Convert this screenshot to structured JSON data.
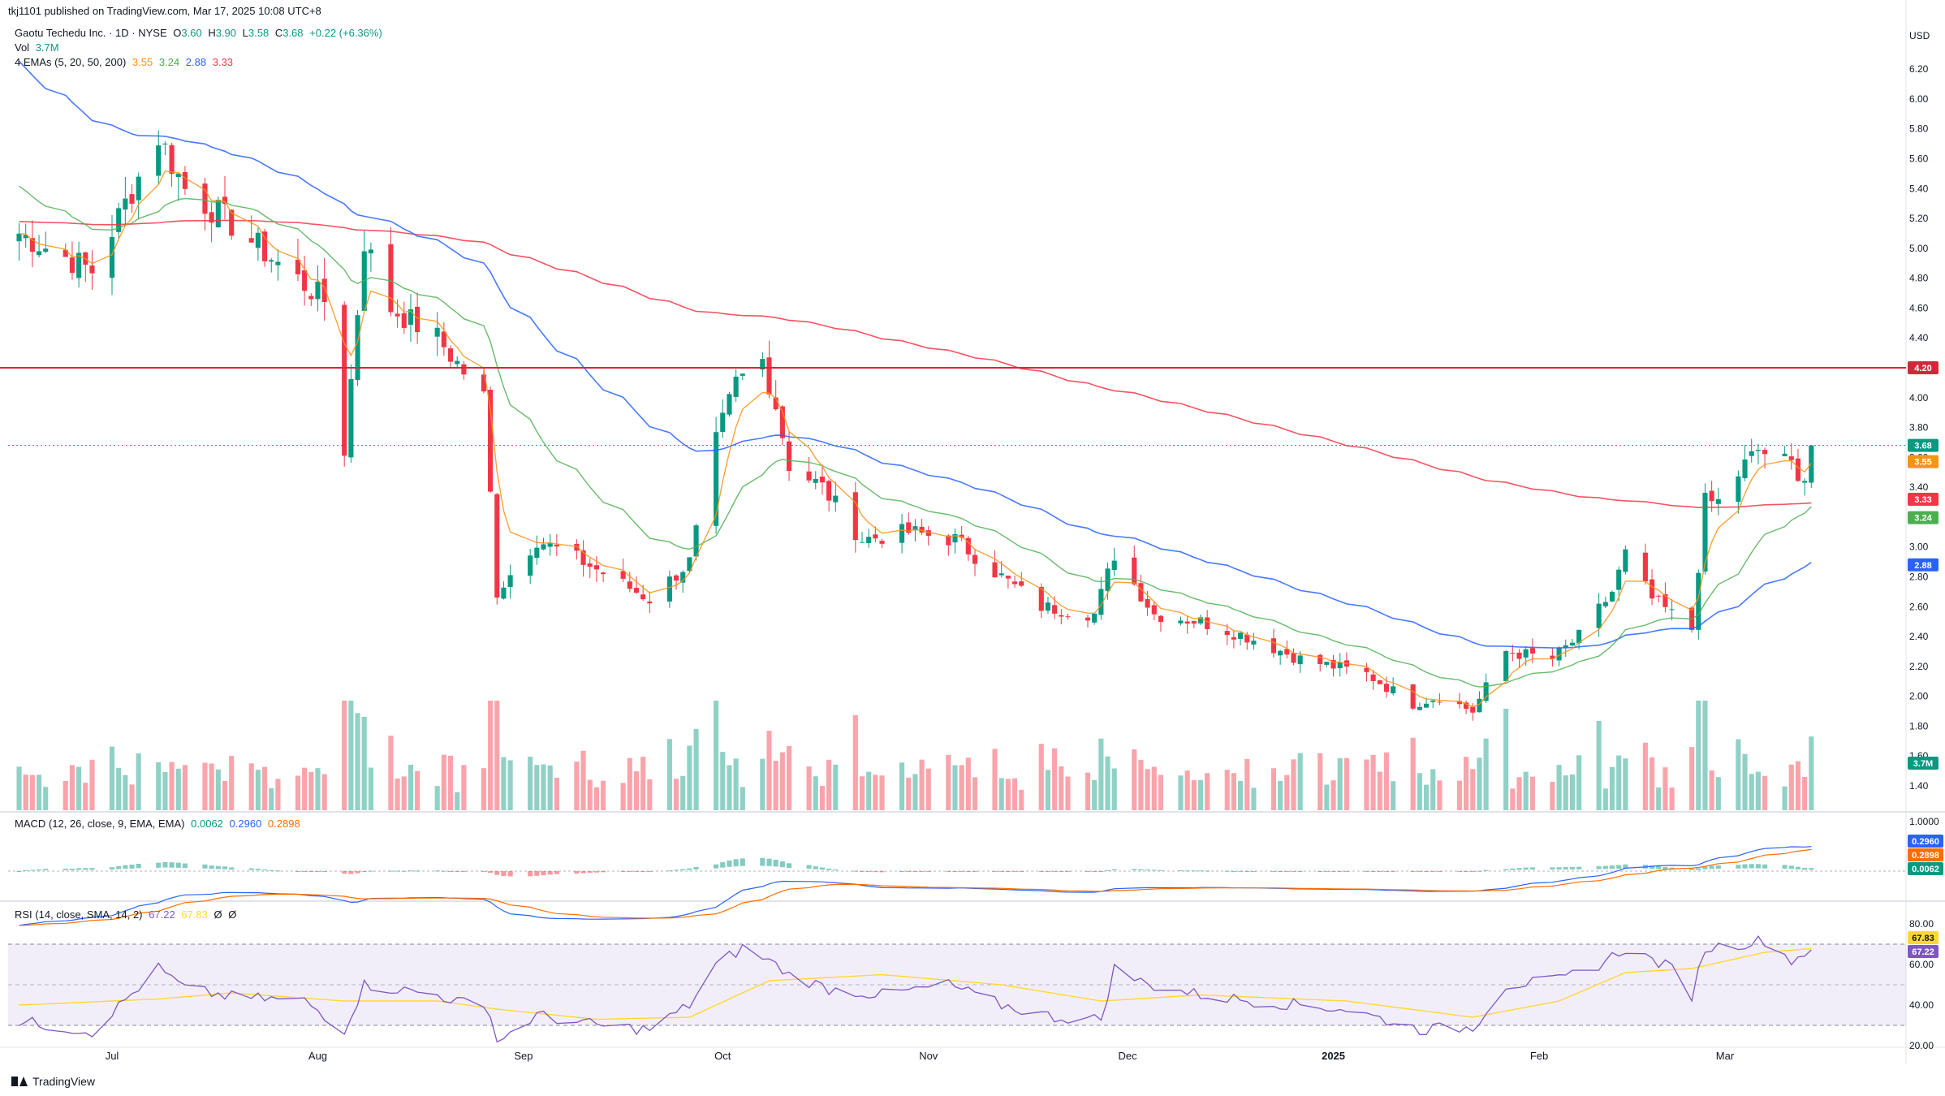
{
  "header": {
    "publisher": "tkj1101 published on TradingView.com, Mar 17, 2025 10:08 UTC+8"
  },
  "legend": {
    "symbol": "Gaotu Techedu Inc. · 1D · NYSE",
    "o_label": "O",
    "o_value": "3.60",
    "h_label": "H",
    "h_value": "3.90",
    "l_label": "L",
    "l_value": "3.58",
    "c_label": "C",
    "c_value": "3.68",
    "change": "+0.22 (+6.36%)",
    "vol_label": "Vol",
    "vol_value": "3.7M",
    "ema_label": "4 EMAs (5, 20, 50, 200)",
    "ema_values": [
      "3.55",
      "3.24",
      "2.88",
      "3.33"
    ],
    "macd_label": "MACD (12, 26, close, 9, EMA, EMA)",
    "macd_values": [
      "0.0062",
      "0.2960",
      "0.2898"
    ],
    "rsi_label": "RSI (14, close, SMA, 14, 2)",
    "rsi_values": [
      "67.22",
      "67.83",
      "Ø",
      "Ø"
    ]
  },
  "footer": {
    "logo_text": "TradingView"
  },
  "colors": {
    "up": "#089981",
    "down": "#f23645",
    "ema5": "#f7931a",
    "ema20": "#4caf50",
    "ema50": "#2962ff",
    "ema200": "#f23645",
    "resistance": "#d1283a",
    "macd": "#2962ff",
    "signal": "#ff6d00",
    "rsi": "#7e57c2",
    "rsi_ma": "#fdd835"
  },
  "chart_data": [
    {
      "type": "candlestick",
      "title": "Gaotu Techedu Inc. · 1D · NYSE",
      "currency": "USD",
      "y_ticks": [
        "1.40",
        "1.60",
        "1.80",
        "2.00",
        "2.20",
        "2.40",
        "2.60",
        "2.80",
        "3.00",
        "3.20",
        "3.40",
        "3.60",
        "3.80",
        "4.00",
        "4.20",
        "4.40",
        "4.60",
        "4.80",
        "5.00",
        "5.20",
        "5.40",
        "5.60",
        "5.80",
        "6.00",
        "6.20"
      ],
      "ylim": [
        1.28,
        6.52
      ],
      "x_labels": [
        "Jul",
        "Aug",
        "Sep",
        "Oct",
        "Nov",
        "Dec",
        "2025",
        "Feb",
        "Mar"
      ],
      "x_label_dates": [
        "2024-07-01",
        "2024-08-01",
        "2024-09-01",
        "2024-10-01",
        "2024-11-01",
        "2024-12-01",
        "2025-01-01",
        "2025-02-01",
        "2025-03-01"
      ],
      "date_range": [
        "2024-06-17",
        "2025-03-14"
      ],
      "horizontal_line": {
        "value": 4.2,
        "label": "4.20"
      },
      "last_price": {
        "value": 3.68,
        "label": "3.68"
      },
      "ema_tags": [
        {
          "name": "EMA 5",
          "value": 3.55,
          "label": "3.55"
        },
        {
          "name": "EMA 200",
          "value": 3.33,
          "label": "3.33"
        },
        {
          "name": "EMA 20",
          "value": 3.24,
          "label": "3.24"
        },
        {
          "name": "EMA 50",
          "value": 2.88,
          "label": "2.88"
        }
      ],
      "vol_tag": "3.7M",
      "key_closes": [
        [
          "2024-06-17",
          5.1
        ],
        [
          "2024-06-28",
          4.85
        ],
        [
          "2024-07-08",
          5.75
        ],
        [
          "2024-07-12",
          5.4
        ],
        [
          "2024-07-18",
          5.2
        ],
        [
          "2024-07-26",
          4.9
        ],
        [
          "2024-08-02",
          4.65
        ],
        [
          "2024-08-05",
          3.65
        ],
        [
          "2024-08-08",
          5.05
        ],
        [
          "2024-08-12",
          4.6
        ],
        [
          "2024-08-19",
          4.4
        ],
        [
          "2024-08-26",
          4.0
        ],
        [
          "2024-08-28",
          2.7
        ],
        [
          "2024-09-03",
          3.05
        ],
        [
          "2024-09-10",
          2.9
        ],
        [
          "2024-09-16",
          2.75
        ],
        [
          "2024-09-20",
          2.65
        ],
        [
          "2024-09-26",
          2.9
        ],
        [
          "2024-09-30",
          3.7
        ],
        [
          "2024-10-03",
          4.1
        ],
        [
          "2024-10-07",
          4.25
        ],
        [
          "2024-10-09",
          3.95
        ],
        [
          "2024-10-11",
          3.55
        ],
        [
          "2024-10-16",
          3.4
        ],
        [
          "2024-10-22",
          3.05
        ],
        [
          "2024-10-29",
          3.1
        ],
        [
          "2024-11-05",
          3.05
        ],
        [
          "2024-11-12",
          2.8
        ],
        [
          "2024-11-18",
          2.6
        ],
        [
          "2024-11-26",
          2.55
        ],
        [
          "2024-11-29",
          2.95
        ],
        [
          "2024-12-05",
          2.55
        ],
        [
          "2024-12-12",
          2.5
        ],
        [
          "2024-12-19",
          2.4
        ],
        [
          "2024-12-27",
          2.25
        ],
        [
          "2025-01-06",
          2.15
        ],
        [
          "2025-01-13",
          1.95
        ],
        [
          "2025-01-17",
          2.0
        ],
        [
          "2025-01-22",
          1.9
        ],
        [
          "2025-01-27",
          2.3
        ],
        [
          "2025-02-03",
          2.25
        ],
        [
          "2025-02-07",
          2.4
        ],
        [
          "2025-02-12",
          2.7
        ],
        [
          "2025-02-14",
          2.95
        ],
        [
          "2025-02-18",
          2.65
        ],
        [
          "2025-02-24",
          2.45
        ],
        [
          "2025-02-26",
          3.3
        ],
        [
          "2025-02-28",
          3.3
        ],
        [
          "2025-03-04",
          3.55
        ],
        [
          "2025-03-06",
          3.65
        ],
        [
          "2025-03-11",
          3.55
        ],
        [
          "2025-03-13",
          3.46
        ],
        [
          "2025-03-14",
          3.68
        ]
      ],
      "volume_ticks": [
        "Vol"
      ]
    },
    {
      "type": "line",
      "title": "MACD (12, 26, close, 9, EMA, EMA)",
      "y_ticks": [
        "1.0000"
      ],
      "tags": [
        {
          "name": "MACD",
          "label": "0.2960"
        },
        {
          "name": "Signal",
          "label": "0.2898"
        },
        {
          "name": "Histogram",
          "label": "0.0062"
        }
      ]
    },
    {
      "type": "line",
      "title": "RSI (14, close, SMA, 14, 2)",
      "y_ticks": [
        "80.00",
        "60.00",
        "40.00",
        "20.00"
      ],
      "ylim": [
        15,
        85
      ],
      "bands": [
        70,
        50,
        30
      ],
      "tags": [
        {
          "name": "RSI-based MA",
          "value": 67.83,
          "label": "67.83"
        },
        {
          "name": "RSI",
          "value": 67.22,
          "label": "67.22"
        }
      ],
      "rsi_points": [
        [
          "2024-06-17",
          32
        ],
        [
          "2024-06-28",
          27
        ],
        [
          "2024-07-08",
          58
        ],
        [
          "2024-07-12",
          48
        ],
        [
          "2024-07-19",
          44
        ],
        [
          "2024-07-30",
          42
        ],
        [
          "2024-08-05",
          28
        ],
        [
          "2024-08-08",
          50
        ],
        [
          "2024-08-19",
          45
        ],
        [
          "2024-08-27",
          37
        ],
        [
          "2024-08-28",
          22
        ],
        [
          "2024-09-03",
          35
        ],
        [
          "2024-09-12",
          30
        ],
        [
          "2024-09-20",
          28
        ],
        [
          "2024-09-26",
          40
        ],
        [
          "2024-09-30",
          60
        ],
        [
          "2024-10-04",
          68
        ],
        [
          "2024-10-08",
          62
        ],
        [
          "2024-10-11",
          55
        ],
        [
          "2024-10-17",
          48
        ],
        [
          "2024-10-25",
          45
        ],
        [
          "2024-11-04",
          50
        ],
        [
          "2024-11-12",
          40
        ],
        [
          "2024-11-20",
          34
        ],
        [
          "2024-11-27",
          33
        ],
        [
          "2024-11-29",
          58
        ],
        [
          "2024-12-04",
          50
        ],
        [
          "2024-12-12",
          45
        ],
        [
          "2024-12-20",
          42
        ],
        [
          "2025-01-03",
          38
        ],
        [
          "2025-01-14",
          28
        ],
        [
          "2025-01-22",
          29
        ],
        [
          "2025-01-27",
          50
        ],
        [
          "2025-02-04",
          52
        ],
        [
          "2025-02-10",
          60
        ],
        [
          "2025-02-14",
          68
        ],
        [
          "2025-02-21",
          58
        ],
        [
          "2025-02-24",
          45
        ],
        [
          "2025-02-26",
          68
        ],
        [
          "2025-03-03",
          70
        ],
        [
          "2025-03-07",
          72
        ],
        [
          "2025-03-11",
          62
        ],
        [
          "2025-03-14",
          67.22
        ]
      ],
      "rsi_ma_points": [
        [
          "2024-06-17",
          40
        ],
        [
          "2024-07-08",
          43
        ],
        [
          "2024-07-19",
          46
        ],
        [
          "2024-08-05",
          42
        ],
        [
          "2024-08-19",
          42
        ],
        [
          "2024-08-28",
          38
        ],
        [
          "2024-09-12",
          33
        ],
        [
          "2024-09-26",
          34
        ],
        [
          "2024-10-08",
          52
        ],
        [
          "2024-10-25",
          55
        ],
        [
          "2024-11-12",
          50
        ],
        [
          "2024-11-27",
          42
        ],
        [
          "2024-12-12",
          45
        ],
        [
          "2025-01-03",
          42
        ],
        [
          "2025-01-22",
          34
        ],
        [
          "2025-02-04",
          42
        ],
        [
          "2025-02-14",
          56
        ],
        [
          "2025-02-24",
          58
        ],
        [
          "2025-03-07",
          66
        ],
        [
          "2025-03-14",
          67.83
        ]
      ]
    }
  ]
}
